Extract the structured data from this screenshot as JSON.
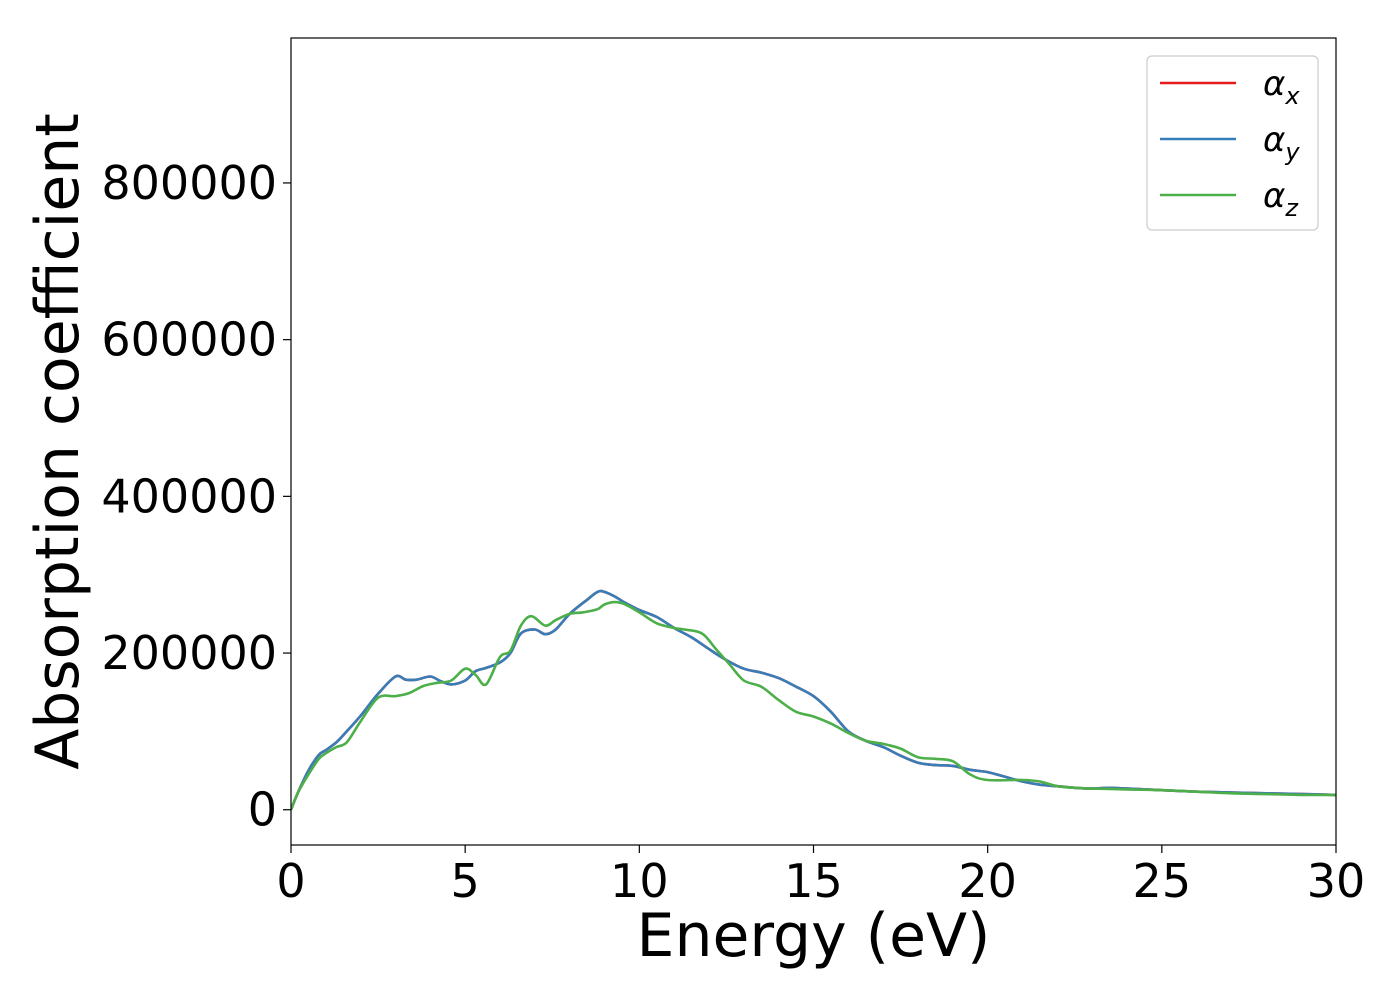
{
  "chart_data": {
    "type": "line",
    "title": "",
    "xlabel": "Energy (eV)",
    "ylabel": "Absorption coefficient",
    "xlim": [
      0,
      30
    ],
    "ylim": [
      -45000,
      985000
    ],
    "xticks": [
      0,
      5,
      10,
      15,
      20,
      25,
      30
    ],
    "yticks": [
      0,
      200000,
      400000,
      600000,
      800000
    ],
    "grid": false,
    "legend_position": "top-right",
    "series": [
      {
        "name": "α",
        "subscript": "x",
        "color": "#e41a1c",
        "x": [
          0,
          0.2,
          0.5,
          0.8,
          1.0,
          1.3,
          1.6,
          2.0,
          2.5,
          3.0,
          3.3,
          3.6,
          4.0,
          4.3,
          4.6,
          5.0,
          5.3,
          5.6,
          6.0,
          6.3,
          6.6,
          7.0,
          7.3,
          7.6,
          8.0,
          8.5,
          8.8,
          9.0,
          9.3,
          9.6,
          10.0,
          10.5,
          11.0,
          11.5,
          12.0,
          12.5,
          13.0,
          13.5,
          14.0,
          14.5,
          15.0,
          15.5,
          16.0,
          16.5,
          17.0,
          17.5,
          18.0,
          18.5,
          19.0,
          19.5,
          20.0,
          20.5,
          21.0,
          21.5,
          22.0,
          22.5,
          23.0,
          23.5,
          24.0,
          25.0,
          26.0,
          27.0,
          28.0,
          29.0,
          30.0
        ],
        "y": [
          0,
          22000,
          50000,
          70000,
          76000,
          86000,
          100000,
          120000,
          148000,
          170000,
          166000,
          166000,
          170000,
          164000,
          160000,
          165000,
          177000,
          181000,
          188000,
          200000,
          225000,
          230000,
          224000,
          230000,
          250000,
          268000,
          278000,
          278000,
          272000,
          264000,
          255000,
          246000,
          232000,
          220000,
          205000,
          191000,
          180000,
          175000,
          168000,
          157000,
          145000,
          125000,
          100000,
          88000,
          80000,
          69000,
          60000,
          57000,
          56000,
          51000,
          48000,
          42000,
          36000,
          32000,
          30000,
          28000,
          27000,
          28000,
          27000,
          25000,
          23000,
          22000,
          21000,
          20000,
          19000
        ]
      },
      {
        "name": "α",
        "subscript": "y",
        "color": "#377eb8",
        "x": [
          0,
          0.2,
          0.5,
          0.8,
          1.0,
          1.3,
          1.6,
          2.0,
          2.5,
          3.0,
          3.3,
          3.6,
          4.0,
          4.3,
          4.6,
          5.0,
          5.3,
          5.6,
          6.0,
          6.3,
          6.6,
          7.0,
          7.3,
          7.6,
          8.0,
          8.5,
          8.8,
          9.0,
          9.3,
          9.6,
          10.0,
          10.5,
          11.0,
          11.5,
          12.0,
          12.5,
          13.0,
          13.5,
          14.0,
          14.5,
          15.0,
          15.5,
          16.0,
          16.5,
          17.0,
          17.5,
          18.0,
          18.5,
          19.0,
          19.5,
          20.0,
          20.5,
          21.0,
          21.5,
          22.0,
          22.5,
          23.0,
          23.5,
          24.0,
          25.0,
          26.0,
          27.0,
          28.0,
          29.0,
          30.0
        ],
        "y": [
          0,
          22000,
          50000,
          70000,
          76000,
          86000,
          100000,
          120000,
          148000,
          170000,
          166000,
          166000,
          170000,
          164000,
          160000,
          165000,
          177000,
          181000,
          188000,
          200000,
          225000,
          230000,
          224000,
          230000,
          250000,
          268000,
          278000,
          278000,
          272000,
          264000,
          255000,
          246000,
          232000,
          220000,
          205000,
          191000,
          180000,
          175000,
          168000,
          157000,
          145000,
          125000,
          100000,
          88000,
          80000,
          69000,
          60000,
          57000,
          56000,
          51000,
          48000,
          42000,
          36000,
          32000,
          30000,
          28000,
          27000,
          28000,
          27000,
          25000,
          23000,
          22000,
          21000,
          20000,
          19000
        ]
      },
      {
        "name": "α",
        "subscript": "z",
        "color": "#4daf4a",
        "x": [
          0,
          0.2,
          0.5,
          0.8,
          1.0,
          1.3,
          1.6,
          2.0,
          2.5,
          3.0,
          3.4,
          3.8,
          4.2,
          4.6,
          5.0,
          5.3,
          5.6,
          6.0,
          6.3,
          6.6,
          6.9,
          7.3,
          7.6,
          8.0,
          8.4,
          8.8,
          9.0,
          9.3,
          9.6,
          10.0,
          10.5,
          11.0,
          11.3,
          11.8,
          12.2,
          12.6,
          13.0,
          13.5,
          14.0,
          14.5,
          15.0,
          15.5,
          16.0,
          16.5,
          17.0,
          17.5,
          18.0,
          18.5,
          19.0,
          19.5,
          20.0,
          21.0,
          21.5,
          22.0,
          22.5,
          23.0,
          24.0,
          25.0,
          26.0,
          27.0,
          28.0,
          29.0,
          30.0
        ],
        "y": [
          0,
          22000,
          45000,
          65000,
          72000,
          80000,
          86000,
          113000,
          143000,
          145000,
          149000,
          158000,
          162000,
          165000,
          180000,
          172000,
          160000,
          195000,
          203000,
          235000,
          247000,
          235000,
          242000,
          250000,
          252000,
          256000,
          262000,
          265000,
          262000,
          252000,
          238000,
          232000,
          230000,
          225000,
          205000,
          185000,
          165000,
          157000,
          140000,
          125000,
          119000,
          110000,
          98000,
          88000,
          84000,
          78000,
          67000,
          65000,
          62000,
          45000,
          38000,
          38000,
          36000,
          30000,
          28000,
          27000,
          26000,
          25000,
          23000,
          21000,
          20000,
          19000,
          19000
        ]
      }
    ]
  }
}
